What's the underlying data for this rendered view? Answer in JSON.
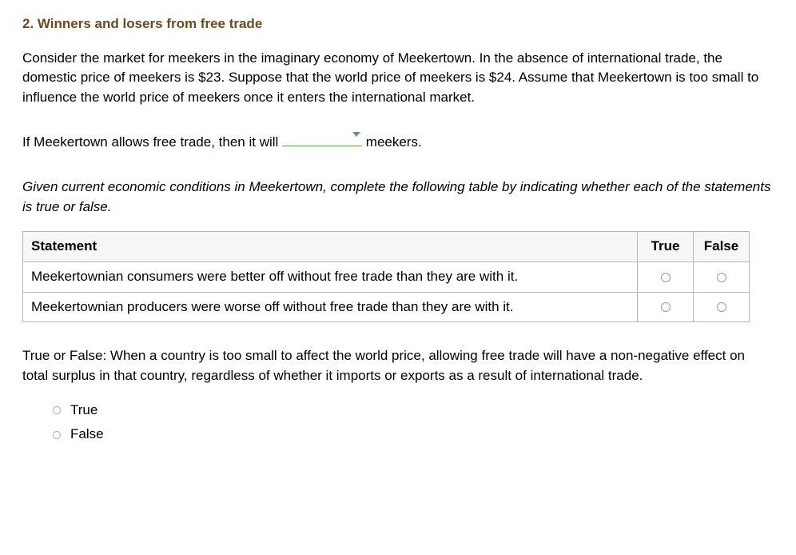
{
  "heading": "2. Winners and losers from free trade",
  "intro_paragraph": "Consider the market for meekers in the imaginary economy of Meekertown. In the absence of international trade, the domestic price of meekers is $23. Suppose that the world price of meekers is $24. Assume that Meekertown is too small to influence the world price of meekers once it enters the international market.",
  "fill_blank": {
    "prefix": "If Meekertown allows free trade, then it will",
    "suffix": "meekers."
  },
  "table_instruction": "Given current economic conditions in Meekertown, complete the following table by indicating whether each of the statements is true or false.",
  "table": {
    "headers": {
      "statement": "Statement",
      "true": "True",
      "false": "False"
    },
    "rows": [
      {
        "statement": "Meekertownian consumers were better off without free trade than they are with it."
      },
      {
        "statement": "Meekertownian producers were worse off without free trade than they are with it."
      }
    ]
  },
  "tf_question": "True or False: When a country is too small to affect the world price, allowing free trade will have a non-negative effect on total surplus in that country, regardless of whether it imports or exports as a result of international trade.",
  "options": {
    "true": "True",
    "false": "False"
  },
  "colors": {
    "heading_color": "#6b4a1f",
    "blank_underline": "#6aa84f",
    "caret_color": "#5a8ac6",
    "table_border": "#b7b7b7",
    "background": "#ffffff",
    "text": "#000000"
  }
}
